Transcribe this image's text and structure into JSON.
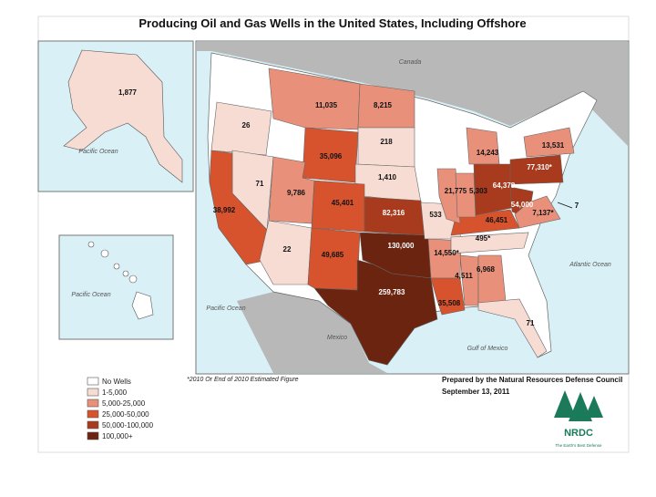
{
  "title": "Producing Oil and Gas Wells in the United States, Including Offshore",
  "regions": {
    "canada": "Canada",
    "mexico": "Mexico",
    "pacific_alaska": "Pacific Ocean",
    "pacific_hawaii": "Pacific Ocean",
    "pacific_main": "Pacific Ocean",
    "atlantic": "Atlantic Ocean",
    "gulf": "Gulf of Mexico"
  },
  "alaska": {
    "label": "1,877",
    "color": "#f7dcd4"
  },
  "states": [
    {
      "label": "11,035",
      "color": "#e8907a"
    },
    {
      "label": "8,215",
      "color": "#e8907a"
    },
    {
      "label": "26",
      "color": "#f7dcd4"
    },
    {
      "label": "218",
      "color": "#f7dcd4"
    },
    {
      "label": "35,096",
      "color": "#d6532e"
    },
    {
      "label": "1,410",
      "color": "#f7dcd4"
    },
    {
      "label": "71",
      "color": "#f7dcd4"
    },
    {
      "label": "38,992",
      "color": "#d6532e"
    },
    {
      "label": "9,786",
      "color": "#e8907a"
    },
    {
      "label": "45,401",
      "color": "#d6532e"
    },
    {
      "label": "82,316",
      "color": "#a83a1e"
    },
    {
      "label": "22",
      "color": "#f7dcd4"
    },
    {
      "label": "49,685",
      "color": "#d6532e"
    },
    {
      "label": "130,000",
      "color": "#6b2410"
    },
    {
      "label": "259,783",
      "color": "#6b2410"
    },
    {
      "label": "533",
      "color": "#f7dcd4"
    },
    {
      "label": "14,550*",
      "color": "#e8907a"
    },
    {
      "label": "35,508",
      "color": "#d6532e"
    },
    {
      "label": "4,511",
      "color": "#e8907a"
    },
    {
      "label": "6,968",
      "color": "#e8907a"
    },
    {
      "label": "71",
      "color": "#f7dcd4"
    },
    {
      "label": "495*",
      "color": "#f7dcd4"
    },
    {
      "label": "46,451",
      "color": "#d6532e"
    },
    {
      "label": "21,775",
      "color": "#e8907a"
    },
    {
      "label": "5,303",
      "color": "#e8907a"
    },
    {
      "label": "14,243",
      "color": "#e8907a"
    },
    {
      "label": "64,378",
      "color": "#a83a1e"
    },
    {
      "label": "54,000",
      "color": "#a83a1e"
    },
    {
      "label": "77,310*",
      "color": "#a83a1e"
    },
    {
      "label": "13,531",
      "color": "#e8907a"
    },
    {
      "label": "7,137*",
      "color": "#e8907a"
    },
    {
      "label": "7",
      "color": "#f7dcd4"
    }
  ],
  "legend": [
    {
      "label": "No Wells",
      "color": "#ffffff"
    },
    {
      "label": "1-5,000",
      "color": "#f7dcd4"
    },
    {
      "label": "5,000-25,000",
      "color": "#e8907a"
    },
    {
      "label": "25,000-50,000",
      "color": "#d6532e"
    },
    {
      "label": "50,000-100,000",
      "color": "#a83a1e"
    },
    {
      "label": "100,000+",
      "color": "#6b2410"
    }
  ],
  "footnote": "*2010 Or End of 2010 Estimated Figure",
  "credit": {
    "line1": "Prepared by the Natural Resources Defense Council",
    "line2": "September 13, 2011"
  },
  "logo": {
    "name": "NRDC",
    "tagline": "The Earth's Best Defense"
  }
}
